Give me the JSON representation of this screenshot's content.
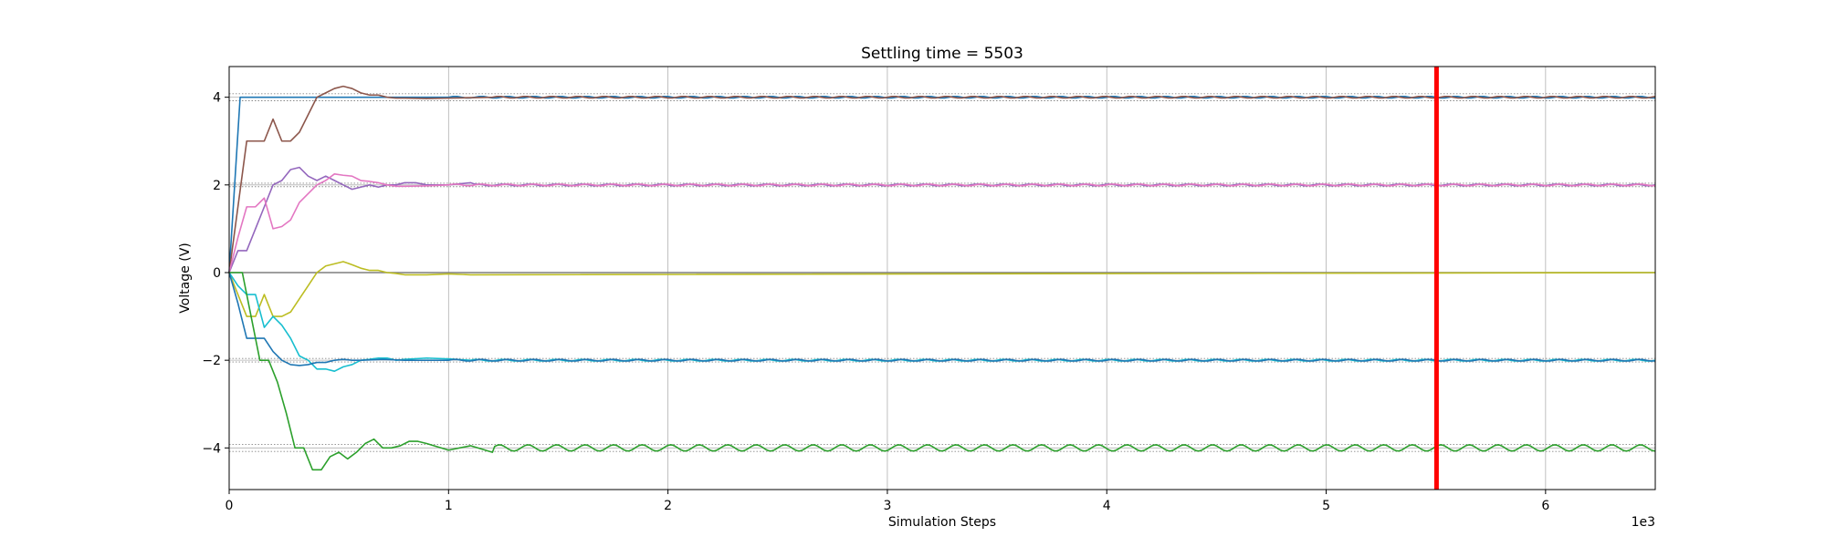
{
  "chart_data": {
    "type": "line",
    "title": "Settling time = 5503",
    "xlabel": "Simulation Steps",
    "ylabel": "Voltage (V)",
    "x_offset_label": "1e3",
    "xlim": [
      0,
      6.5
    ],
    "ylim": [
      -4.95,
      4.7
    ],
    "xticks": [
      0,
      1,
      2,
      3,
      4,
      5,
      6
    ],
    "xtick_labels": [
      "0",
      "1",
      "2",
      "3",
      "4",
      "5",
      "6"
    ],
    "yticks": [
      -4,
      -2,
      0,
      2,
      4
    ],
    "ytick_labels": [
      "−4",
      "−2",
      "0",
      "2",
      "4"
    ],
    "grid": true,
    "settling_marker": {
      "x": 5.503,
      "color": "#ff0000"
    },
    "tolerance_bands": [
      {
        "low": 3.92,
        "high": 4.08
      },
      {
        "low": 1.96,
        "high": 2.04
      },
      {
        "low": -2.04,
        "high": -1.96
      },
      {
        "low": -4.08,
        "high": -3.92
      }
    ],
    "series": [
      {
        "color": "#1f77b4",
        "target": 4,
        "x": [
          0,
          0.05,
          0.1,
          0.5,
          1.0,
          6.5
        ],
        "y": [
          0,
          4.0,
          4.0,
          4.0,
          4.0,
          4.0
        ]
      },
      {
        "color": "#8c564b",
        "target": 4,
        "x": [
          0,
          0.04,
          0.08,
          0.12,
          0.16,
          0.2,
          0.24,
          0.28,
          0.32,
          0.36,
          0.4,
          0.44,
          0.48,
          0.52,
          0.56,
          0.6,
          0.64,
          0.68,
          0.72,
          0.76,
          0.8,
          0.9,
          1.0,
          1.1,
          1.2,
          6.5
        ],
        "y": [
          0,
          1.5,
          3.0,
          3.0,
          3.0,
          3.5,
          3.0,
          3.0,
          3.2,
          3.6,
          4.0,
          4.1,
          4.2,
          4.25,
          4.2,
          4.1,
          4.05,
          4.05,
          4.0,
          3.98,
          3.98,
          3.97,
          3.98,
          3.99,
          4.0,
          4.0
        ]
      },
      {
        "color": "#9467bd",
        "target": 2,
        "x": [
          0,
          0.04,
          0.08,
          0.12,
          0.16,
          0.2,
          0.24,
          0.28,
          0.32,
          0.36,
          0.4,
          0.44,
          0.48,
          0.52,
          0.56,
          0.6,
          0.64,
          0.68,
          0.72,
          0.76,
          0.8,
          0.85,
          0.9,
          1.0,
          1.1,
          6.5
        ],
        "y": [
          0,
          0.5,
          0.5,
          1.0,
          1.5,
          2.0,
          2.1,
          2.35,
          2.4,
          2.2,
          2.1,
          2.2,
          2.1,
          2.0,
          1.9,
          1.95,
          2.0,
          1.95,
          2.0,
          2.0,
          2.05,
          2.05,
          2.0,
          2.0,
          2.05,
          2.0
        ]
      },
      {
        "color": "#e377c2",
        "target": 2,
        "x": [
          0,
          0.04,
          0.08,
          0.12,
          0.16,
          0.2,
          0.24,
          0.28,
          0.32,
          0.36,
          0.4,
          0.44,
          0.48,
          0.52,
          0.56,
          0.6,
          0.64,
          0.68,
          0.72,
          0.76,
          0.8,
          0.9,
          1.0,
          6.5
        ],
        "y": [
          0,
          0.8,
          1.5,
          1.5,
          1.7,
          1.0,
          1.05,
          1.2,
          1.6,
          1.8,
          2.0,
          2.1,
          2.25,
          2.22,
          2.2,
          2.1,
          2.08,
          2.05,
          2.0,
          1.97,
          1.97,
          1.98,
          2.0,
          2.0
        ]
      },
      {
        "color": "#7f7f7f",
        "target": 0,
        "x": [
          0,
          6.5
        ],
        "y": [
          0,
          0
        ]
      },
      {
        "color": "#bcbd22",
        "target": 0,
        "x": [
          0,
          0.04,
          0.08,
          0.12,
          0.16,
          0.2,
          0.24,
          0.28,
          0.32,
          0.36,
          0.4,
          0.44,
          0.48,
          0.52,
          0.56,
          0.6,
          0.64,
          0.68,
          0.72,
          0.76,
          0.8,
          0.9,
          1.0,
          1.1,
          6.5
        ],
        "y": [
          0,
          -0.5,
          -1.0,
          -1.0,
          -0.5,
          -1.0,
          -1.0,
          -0.9,
          -0.6,
          -0.3,
          0.0,
          0.15,
          0.2,
          0.25,
          0.18,
          0.1,
          0.05,
          0.05,
          0.0,
          -0.02,
          -0.05,
          -0.05,
          -0.03,
          -0.05,
          0.0
        ]
      },
      {
        "color": "#17becf",
        "target": -2,
        "x": [
          0,
          0.04,
          0.08,
          0.12,
          0.16,
          0.2,
          0.24,
          0.28,
          0.32,
          0.36,
          0.4,
          0.44,
          0.48,
          0.52,
          0.56,
          0.6,
          0.64,
          0.68,
          0.72,
          0.76,
          0.8,
          0.9,
          1.0,
          1.1,
          6.5
        ],
        "y": [
          0,
          -0.3,
          -0.5,
          -0.5,
          -1.25,
          -1.0,
          -1.2,
          -1.5,
          -1.9,
          -2.0,
          -2.2,
          -2.2,
          -2.25,
          -2.15,
          -2.1,
          -2.0,
          -1.98,
          -1.95,
          -1.95,
          -2.0,
          -1.98,
          -1.95,
          -1.97,
          -2.0,
          -2.0
        ]
      },
      {
        "color": "#1f77b4",
        "target": -2,
        "x": [
          0,
          0.04,
          0.08,
          0.12,
          0.16,
          0.2,
          0.24,
          0.28,
          0.32,
          0.36,
          0.4,
          0.44,
          0.48,
          0.52,
          0.56,
          0.6,
          0.7,
          0.8,
          0.9,
          1.0,
          6.5
        ],
        "y": [
          0,
          -0.7,
          -1.5,
          -1.5,
          -1.5,
          -1.8,
          -2.0,
          -2.1,
          -2.12,
          -2.1,
          -2.05,
          -2.05,
          -2.0,
          -1.98,
          -2.0,
          -2.0,
          -1.98,
          -2.0,
          -2.0,
          -2.0,
          -2.0
        ]
      },
      {
        "color": "#2ca02c",
        "target": -4,
        "x": [
          0,
          0.06,
          0.1,
          0.14,
          0.18,
          0.22,
          0.26,
          0.3,
          0.34,
          0.38,
          0.42,
          0.46,
          0.5,
          0.54,
          0.58,
          0.62,
          0.66,
          0.7,
          0.74,
          0.78,
          0.82,
          0.86,
          0.9,
          1.0,
          1.1,
          1.2
        ],
        "y": [
          0,
          0,
          -1.0,
          -2.0,
          -2.0,
          -2.5,
          -3.2,
          -4.0,
          -4.0,
          -4.5,
          -4.5,
          -4.2,
          -4.1,
          -4.25,
          -4.1,
          -3.9,
          -3.8,
          -4.0,
          -4.0,
          -3.95,
          -3.85,
          -3.85,
          -3.9,
          -4.05,
          -3.95,
          -4.1
        ],
        "oscillate_from": 1.2,
        "oscillation": {
          "center": -4.0,
          "amplitude": 0.07,
          "period": 0.13
        }
      }
    ]
  }
}
